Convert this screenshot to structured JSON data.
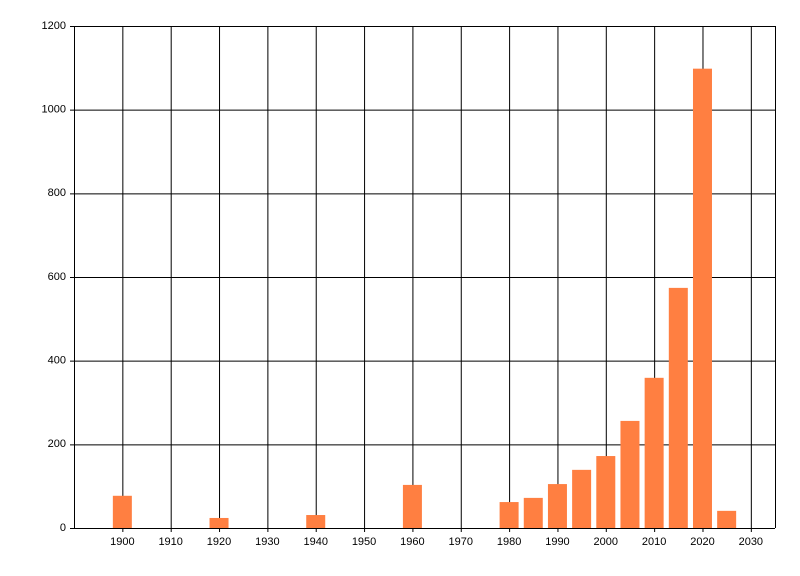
{
  "chart_data": {
    "type": "bar",
    "x": [
      1900,
      1920,
      1940,
      1960,
      1980,
      1985,
      1990,
      1995,
      2000,
      2005,
      2010,
      2015,
      2020,
      2025
    ],
    "values": [
      77,
      24,
      31,
      103,
      62,
      72,
      105,
      139,
      172,
      256,
      359,
      574,
      1098,
      41
    ],
    "color": "#ff7f41",
    "xlim": [
      1890,
      2035
    ],
    "xticks": [
      1900,
      1910,
      1920,
      1930,
      1940,
      1950,
      1960,
      1970,
      1980,
      1990,
      2000,
      2010,
      2020,
      2030
    ],
    "ylim": [
      0,
      1200
    ],
    "yticks": [
      0,
      200,
      400,
      600,
      800,
      1000,
      1200
    ],
    "grid": true
  }
}
